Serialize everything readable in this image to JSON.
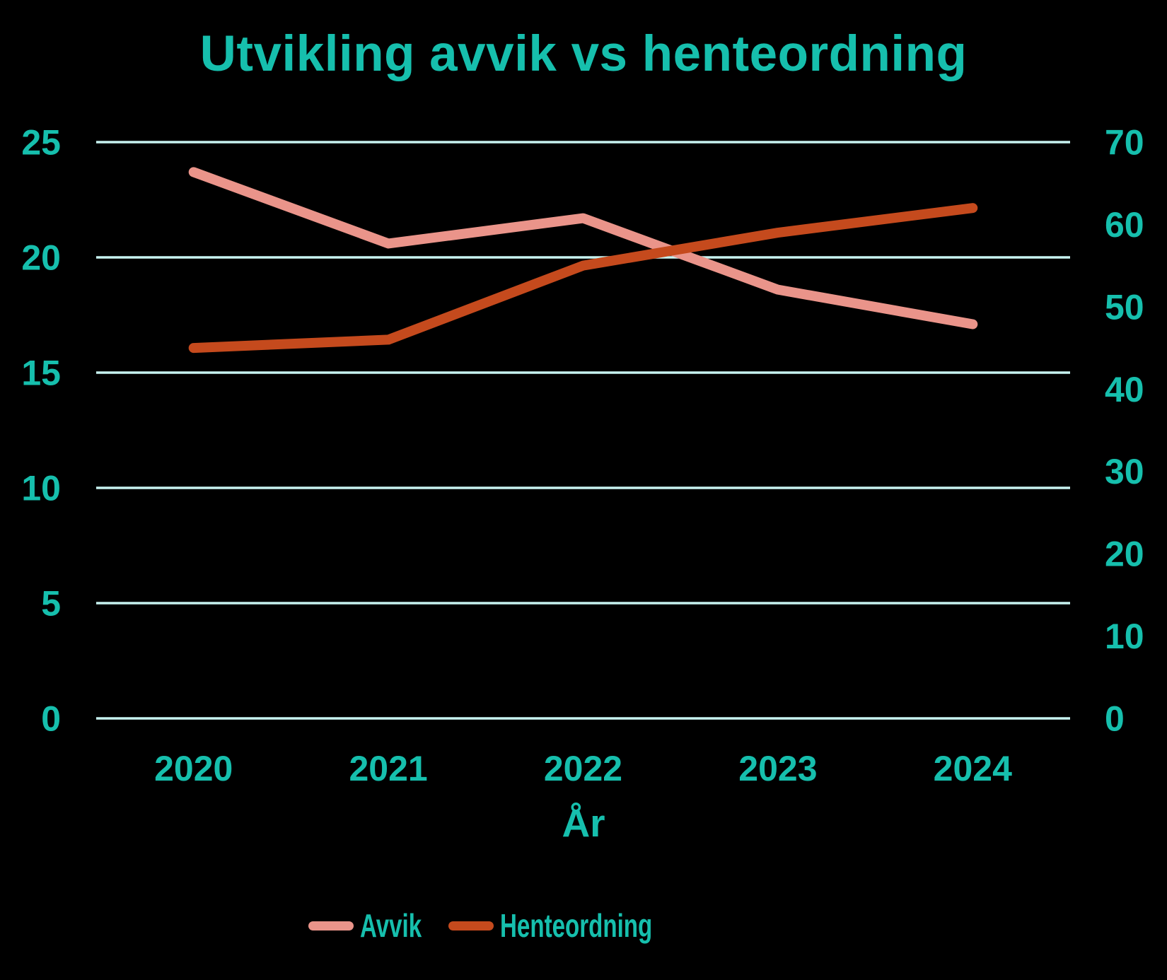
{
  "title": "Utvikling avvik vs henteordning",
  "colors": {
    "background": "#000000",
    "text_teal": "#16BFAD",
    "gridline": "#C7F3F0",
    "avvik_pink": "#EA948A",
    "henteordning_orange": "#C54A1D"
  },
  "chart_data": {
    "type": "line",
    "title": "Utvikling avvik vs henteordning",
    "xlabel": "År",
    "categories": [
      "2020",
      "2021",
      "2022",
      "2023",
      "2024"
    ],
    "series": [
      {
        "name": "Avvik",
        "axis": "left",
        "color": "#EA948A",
        "values": [
          23.7,
          20.6,
          21.7,
          18.6,
          17.1
        ]
      },
      {
        "name": "Henteordning",
        "axis": "right",
        "color": "#C54A1D",
        "values": [
          45,
          46,
          55,
          59,
          62
        ]
      }
    ],
    "left_axis": {
      "min": 0,
      "max": 25,
      "ticks": [
        0,
        5,
        10,
        15,
        20,
        25
      ]
    },
    "right_axis": {
      "min": 0,
      "max": 70,
      "ticks": [
        0,
        10,
        20,
        30,
        40,
        50,
        60,
        70
      ]
    },
    "grid": "horizontal",
    "legend_position": "bottom"
  }
}
